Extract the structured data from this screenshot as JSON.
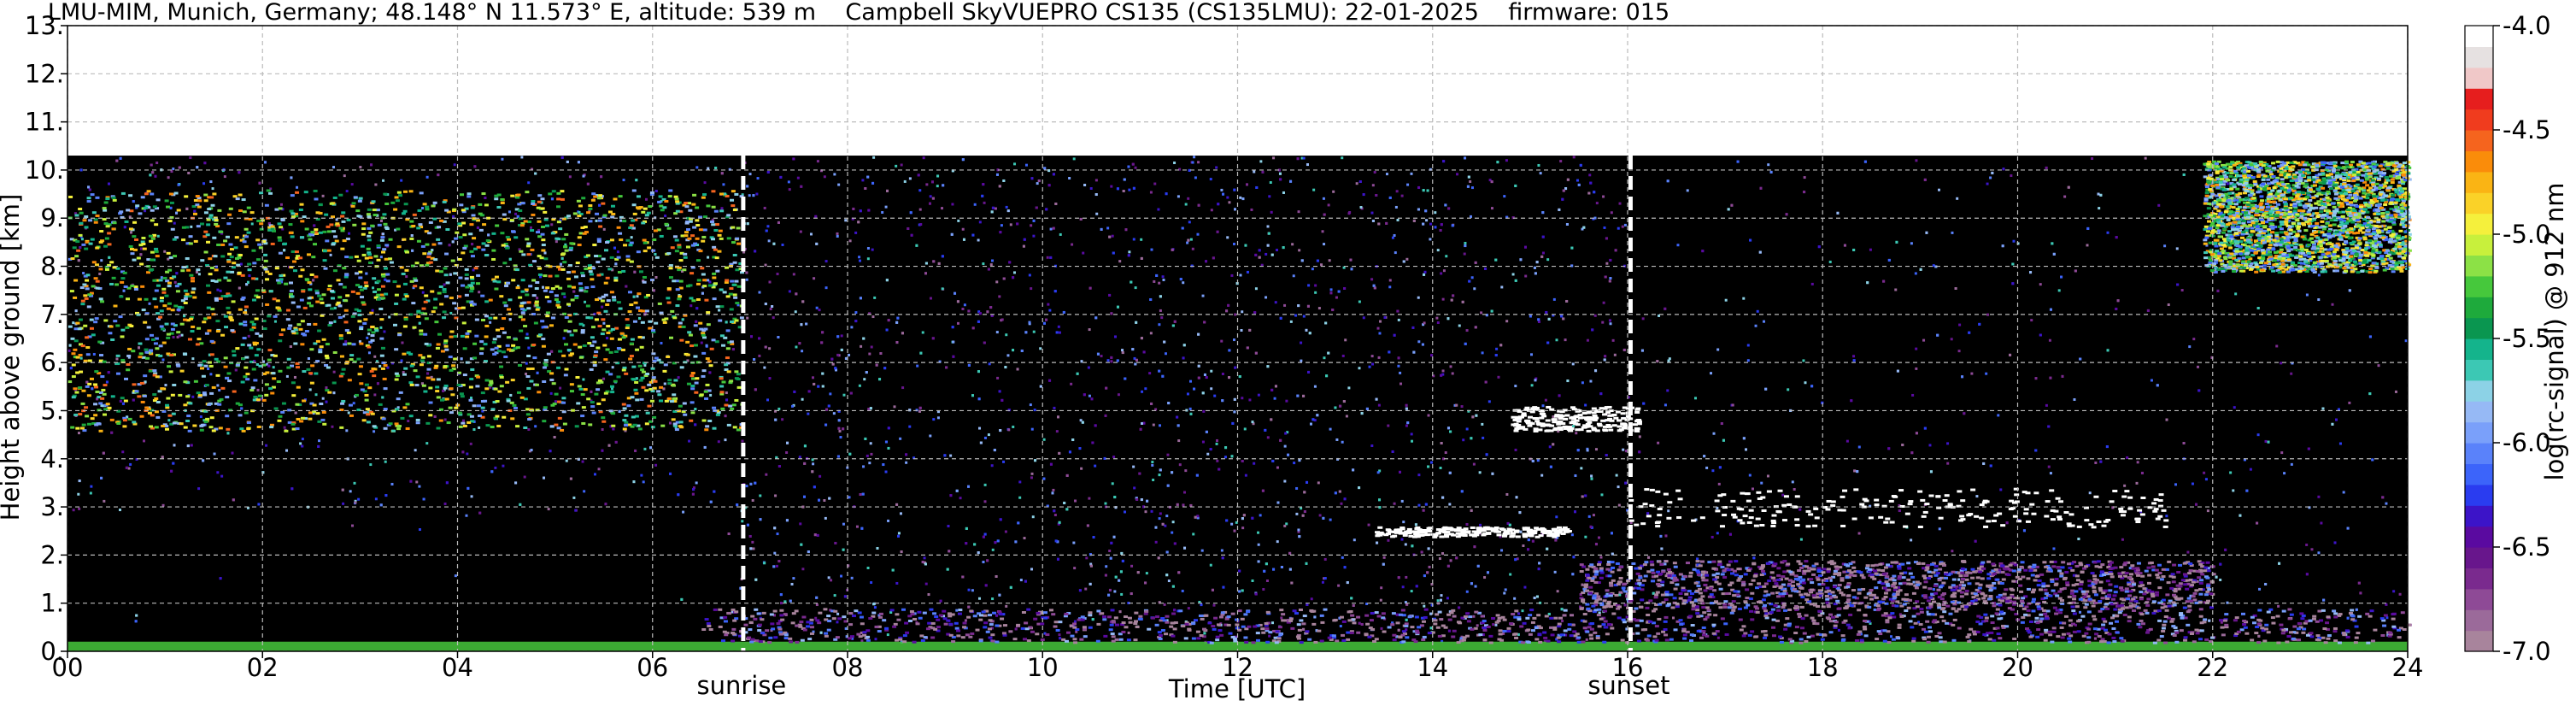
{
  "chart_data": {
    "type": "heatmap",
    "title": "LMU-MIM, Munich, Germany; 48.148° N 11.573° E, altitude: 539 m    Campbell SkyVUEPRO CS135 (CS135LMU): 22-01-2025    firmware: 015",
    "xlabel": "Time [UTC]",
    "ylabel": "Height above ground [km]",
    "xlim": [
      0,
      24
    ],
    "ylim": [
      0,
      13
    ],
    "x_ticks": [
      "00",
      "02",
      "04",
      "06",
      "08",
      "10",
      "12",
      "14",
      "16",
      "18",
      "20",
      "22",
      "24"
    ],
    "y_ticks": [
      "0.",
      "1.",
      "2.",
      "3.",
      "4.",
      "5.",
      "6.",
      "7.",
      "8.",
      "9.",
      "10.",
      "11.",
      "12.",
      "13."
    ],
    "grid": true,
    "data_ceiling_km": 10.3,
    "colorbar": {
      "label": "log(rc-signal) @ 912 nm",
      "range": [
        -7.0,
        -4.0
      ],
      "ticks": [
        "-4.0",
        "-4.5",
        "-5.0",
        "-5.5",
        "-6.0",
        "-6.5",
        "-7.0"
      ],
      "colors": [
        "#a8849c",
        "#9b6a9a",
        "#8e4a96",
        "#7a2a8e",
        "#68168c",
        "#5a0aa0",
        "#3c14c8",
        "#2a3cf0",
        "#3c64fa",
        "#5a82fa",
        "#7aa0fa",
        "#96b9f5",
        "#8cd2e6",
        "#3cc8b4",
        "#14b48c",
        "#0a9650",
        "#1eaa3c",
        "#46c83c",
        "#8ce146",
        "#c8f03c",
        "#f5f03c",
        "#fad228",
        "#fab414",
        "#fa8c0a",
        "#f5641e",
        "#f03c1e",
        "#e61e1e",
        "#f0c8c8",
        "#e6e1e1",
        "#ffffff"
      ]
    },
    "annotations": [
      {
        "label": "sunrise",
        "x": 6.93
      },
      {
        "label": "sunset",
        "x": 16.03
      }
    ],
    "layers": [
      {
        "feature": "surface_layer",
        "x": [
          0,
          24
        ],
        "y": [
          0,
          0.2
        ],
        "value": -5.3
      },
      {
        "feature": "boundary_layer_aerosol",
        "x": [
          6.5,
          24
        ],
        "y": [
          0.2,
          0.9
        ],
        "value": -6.6
      },
      {
        "feature": "boundary_layer_aerosol",
        "x": [
          15.5,
          22
        ],
        "y": [
          0.9,
          1.9
        ],
        "value": -6.7
      },
      {
        "feature": "cirrus",
        "x": [
          0,
          6.9
        ],
        "y": [
          4.6,
          9.6
        ],
        "value": -5.3
      },
      {
        "feature": "cirrus",
        "x": [
          21.9,
          24
        ],
        "y": [
          7.9,
          10.2
        ],
        "value": -5.4
      },
      {
        "feature": "cloud_layer",
        "x": [
          13.4,
          15.4
        ],
        "y": [
          2.4,
          2.6
        ],
        "value": -4.0
      },
      {
        "feature": "cloud_layer",
        "x": [
          16.0,
          21.5
        ],
        "y": [
          2.6,
          3.4
        ],
        "value": -4.0
      },
      {
        "feature": "cloud_layer",
        "x": [
          14.8,
          16.1
        ],
        "y": [
          4.6,
          5.1
        ],
        "value": -4.0
      }
    ]
  }
}
